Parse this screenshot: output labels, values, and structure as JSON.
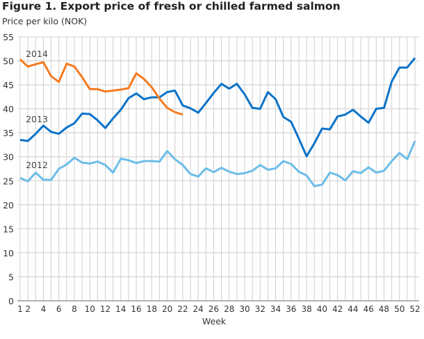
{
  "chart_data": {
    "type": "line",
    "title": "Figure 1. Export price of fresh or chilled farmed salmon",
    "ylabel": "Price per kilo (NOK)",
    "xlabel": "Week",
    "ylim": [
      0,
      55
    ],
    "yticks": [
      0,
      5,
      10,
      15,
      20,
      25,
      30,
      35,
      40,
      45,
      50,
      55
    ],
    "xlim": [
      1,
      52
    ],
    "xticks": [
      1,
      2,
      4,
      6,
      8,
      10,
      12,
      14,
      16,
      18,
      20,
      22,
      24,
      26,
      28,
      30,
      32,
      34,
      36,
      38,
      40,
      42,
      44,
      46,
      48,
      50,
      52
    ],
    "grid": true,
    "series": [
      {
        "name": "2012",
        "color": "#6cbde9",
        "values": [
          25.6,
          24.9,
          26.7,
          25.2,
          25.2,
          27.5,
          28.4,
          29.8,
          28.8,
          28.6,
          29.0,
          28.3,
          26.7,
          29.6,
          29.3,
          28.7,
          29.1,
          29.1,
          29.0,
          31.2,
          29.5,
          28.3,
          26.4,
          25.9,
          27.6,
          26.8,
          27.7,
          26.9,
          26.4,
          26.6,
          27.1,
          28.3,
          27.3,
          27.6,
          29.1,
          28.5,
          26.9,
          26.1,
          23.9,
          24.2,
          26.7,
          26.2,
          25.1,
          27.0,
          26.6,
          27.8,
          26.7,
          27.1,
          29.1,
          30.8,
          29.5,
          33.3
        ]
      },
      {
        "name": "2013",
        "color": "#0b73c9",
        "values": [
          33.5,
          33.3,
          34.8,
          36.5,
          35.2,
          34.8,
          36.1,
          37.0,
          39.0,
          38.9,
          37.6,
          36.0,
          38.0,
          39.8,
          42.2,
          43.2,
          42.0,
          42.4,
          42.4,
          43.5,
          43.8,
          40.7,
          40.1,
          39.2,
          41.2,
          43.3,
          45.2,
          44.2,
          45.2,
          43.0,
          40.2,
          40.0,
          43.5,
          42.0,
          38.3,
          37.3,
          33.8,
          30.1,
          32.8,
          35.9,
          35.7,
          38.4,
          38.8,
          39.8,
          38.4,
          37.1,
          40.0,
          40.2,
          45.7,
          48.6,
          48.6,
          50.6
        ]
      },
      {
        "name": "2014",
        "color": "#f57a1f",
        "values": [
          50.3,
          48.8,
          49.3,
          49.7,
          46.8,
          45.6,
          49.4,
          48.8,
          46.6,
          44.1,
          44.1,
          43.6,
          43.8,
          44.0,
          44.3,
          47.4,
          46.2,
          44.5,
          42.1,
          40.2,
          39.3,
          38.8
        ]
      }
    ]
  }
}
